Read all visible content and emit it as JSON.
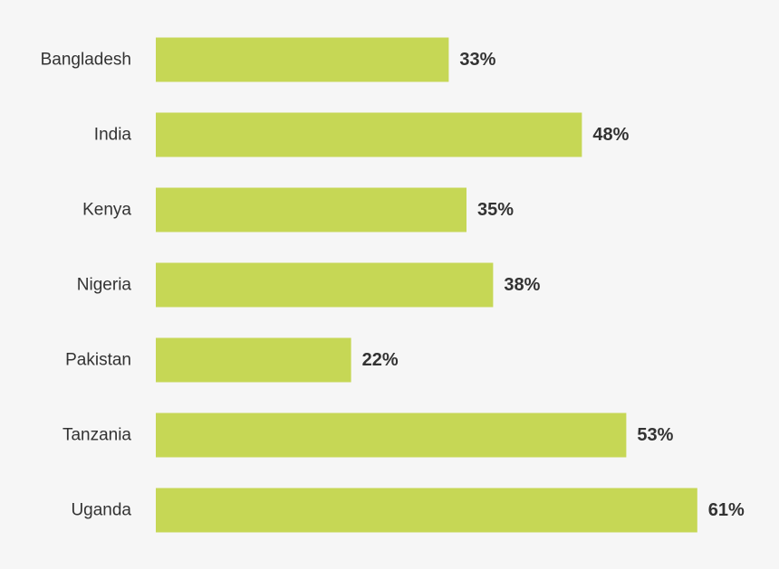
{
  "chart_data": {
    "type": "bar",
    "orientation": "horizontal",
    "categories": [
      "Bangladesh",
      "India",
      "Kenya",
      "Nigeria",
      "Pakistan",
      "Tanzania",
      "Uganda"
    ],
    "values": [
      33,
      48,
      35,
      38,
      22,
      53,
      61
    ],
    "value_labels": [
      "33%",
      "48%",
      "35%",
      "38%",
      "22%",
      "53%",
      "61%"
    ],
    "unit": "%",
    "xlim": [
      0,
      100
    ],
    "grid": false,
    "legend": "none",
    "title": "",
    "xlabel": "",
    "ylabel": ""
  },
  "colors": {
    "bar": "#c6d755",
    "background": "#f6f6f6",
    "text": "#333333"
  }
}
